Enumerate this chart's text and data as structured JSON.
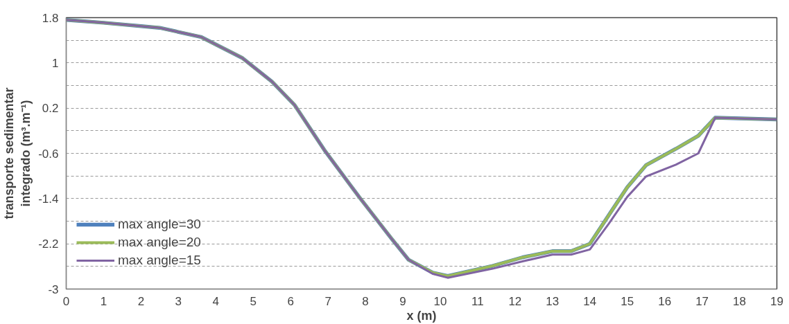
{
  "chart_data": {
    "type": "line",
    "xlabel": "x (m)",
    "ylabel": "transporte sedimentar\nintegrado (m³.m⁻¹)",
    "x": [
      0,
      1,
      2,
      2.5,
      3.6,
      4.7,
      5.5,
      6.1,
      6.9,
      7.83,
      8.7,
      9.15,
      9.8,
      10.2,
      11.4,
      12.2,
      13,
      13.5,
      14,
      14.5,
      15,
      15.5,
      16.3,
      16.9,
      17.35,
      19
    ],
    "series": [
      {
        "name": "max angle=30",
        "color": "#4f81bd",
        "values": [
          1.76,
          1.71,
          1.65,
          1.62,
          1.46,
          1.09,
          0.67,
          0.26,
          -0.54,
          -1.37,
          -2.11,
          -2.48,
          -2.71,
          -2.77,
          -2.59,
          -2.44,
          -2.33,
          -2.33,
          -2.2,
          -1.7,
          -1.2,
          -0.81,
          -0.52,
          -0.29,
          0.03,
          0.0
        ]
      },
      {
        "name": "max angle=20",
        "color": "#9bbb59",
        "values": [
          1.76,
          1.71,
          1.65,
          1.62,
          1.46,
          1.09,
          0.67,
          0.26,
          -0.54,
          -1.37,
          -2.11,
          -2.48,
          -2.71,
          -2.77,
          -2.59,
          -2.44,
          -2.33,
          -2.33,
          -2.2,
          -1.7,
          -1.2,
          -0.81,
          -0.52,
          -0.29,
          0.03,
          0.0
        ]
      },
      {
        "name": "max angle=15",
        "color": "#8064a2",
        "values": [
          1.76,
          1.71,
          1.65,
          1.62,
          1.46,
          1.09,
          0.67,
          0.26,
          -0.54,
          -1.37,
          -2.11,
          -2.48,
          -2.73,
          -2.8,
          -2.64,
          -2.51,
          -2.39,
          -2.39,
          -2.3,
          -1.85,
          -1.37,
          -1.01,
          -0.8,
          -0.6,
          0.03,
          0.0
        ]
      }
    ],
    "xlim": [
      0,
      19
    ],
    "xticks": [
      0,
      1,
      2,
      3,
      4,
      5,
      6,
      7,
      8,
      9,
      10,
      11,
      12,
      13,
      14,
      15,
      16,
      17,
      18,
      19
    ],
    "ylim": [
      -3,
      1.8
    ],
    "yticks": [
      1.8,
      {
        "value": 1.4,
        "label": null
      },
      1,
      {
        "value": 0.6,
        "label": null
      },
      0.2,
      {
        "value": -0.2,
        "label": null
      },
      -0.6,
      {
        "value": -1.0,
        "label": null
      },
      -1.4,
      {
        "value": -1.8,
        "label": null
      },
      -2.2,
      {
        "value": -2.6,
        "label": null
      },
      -3
    ],
    "grid": "y",
    "legend": "left",
    "line_style": "solid"
  }
}
